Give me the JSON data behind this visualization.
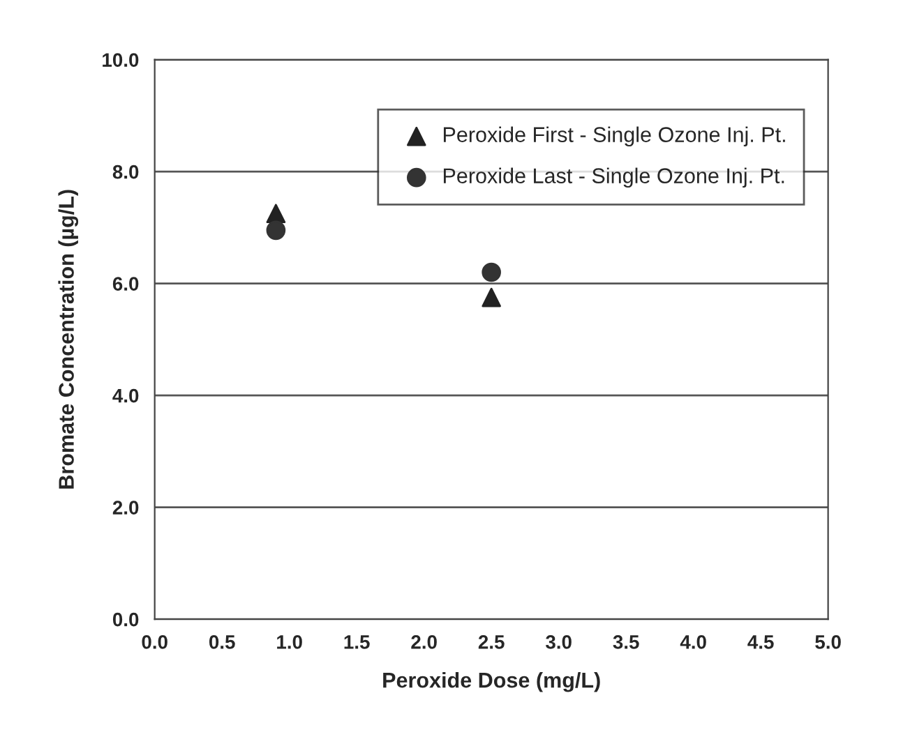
{
  "chart_data": {
    "type": "scatter",
    "xlabel": "Peroxide Dose (mg/L)",
    "ylabel": "Bromate Concentration (µg/L)",
    "x": [
      0.9,
      2.5
    ],
    "series": [
      {
        "name": "Peroxide First - Single Ozone Inj. Pt.",
        "color": "#222222",
        "marker": "triangle",
        "values": [
          7.25,
          5.75
        ]
      },
      {
        "name": "Peroxide Last - Single Ozone Inj. Pt.",
        "color": "#333333",
        "marker": "circle",
        "values": [
          6.95,
          6.2
        ]
      }
    ],
    "xlim": [
      0,
      5
    ],
    "ylim": [
      0,
      10
    ],
    "xticks": [
      {
        "value": 0,
        "label": "0.0"
      },
      0.5,
      {
        "value": 1,
        "label": "1.0"
      },
      1.5,
      {
        "value": 2,
        "label": "2.0"
      },
      2.5,
      {
        "value": 3,
        "label": "3.0"
      },
      3.5,
      {
        "value": 4,
        "label": "4.0"
      },
      4.5,
      {
        "value": 5,
        "label": "5.0"
      }
    ],
    "yticks": [
      {
        "value": 0,
        "label": "0.0"
      },
      {
        "value": 2,
        "label": "2.0"
      },
      {
        "value": 4,
        "label": "4.0"
      },
      {
        "value": 6,
        "label": "6.0"
      },
      {
        "value": 8,
        "label": "8.0"
      },
      {
        "value": 10,
        "label": "10.0"
      }
    ],
    "grid": "y",
    "legend": "top right"
  }
}
